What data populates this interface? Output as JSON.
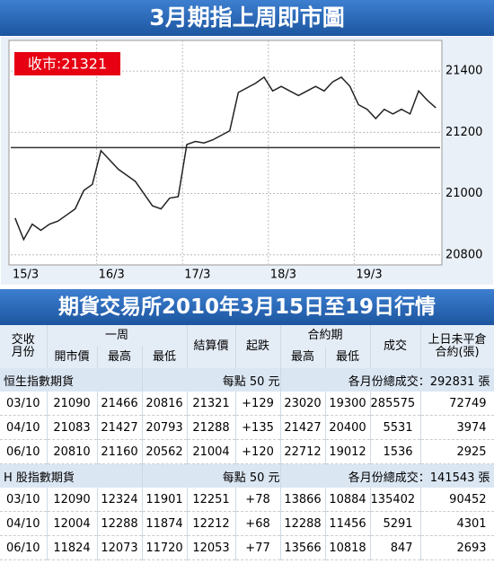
{
  "chart_data": {
    "type": "line",
    "title": "3月期指上周即市圖",
    "annotation": "收市:21321",
    "categories": [
      "15/3",
      null,
      null,
      null,
      null,
      null,
      null,
      null,
      null,
      null,
      "16/3",
      null,
      null,
      null,
      null,
      null,
      null,
      null,
      null,
      null,
      "17/3",
      null,
      null,
      null,
      null,
      null,
      null,
      null,
      null,
      null,
      "18/3",
      null,
      null,
      null,
      null,
      null,
      null,
      null,
      null,
      null,
      "19/3",
      null,
      null,
      null,
      null,
      null,
      null,
      null,
      null,
      null
    ],
    "values": [
      20920,
      20850,
      20900,
      20880,
      20900,
      20910,
      20930,
      20950,
      21010,
      21030,
      21140,
      21110,
      21080,
      21060,
      21040,
      21000,
      20960,
      20950,
      20985,
      20990,
      21160,
      21170,
      21165,
      21175,
      21190,
      21205,
      21330,
      21345,
      21360,
      21380,
      21335,
      21350,
      21335,
      21320,
      21335,
      21350,
      21335,
      21365,
      21380,
      21350,
      21290,
      21275,
      21245,
      21275,
      21260,
      21275,
      21260,
      21335,
      21305,
      21280
    ],
    "color": "#222222",
    "ref_line": 21150,
    "ylim": [
      20770,
      21500
    ],
    "yticks": [
      20800,
      21000,
      21200,
      21400
    ],
    "grid": true
  },
  "table": {
    "title": "期貨交易所2010年3月15日至19日行情",
    "header_row1": [
      "交收\n月份",
      "一周",
      "結算價",
      "起跌",
      "合約期",
      "成交",
      "上日未平倉\n合約(張)"
    ],
    "header_row2": [
      "開市價",
      "最高",
      "最低",
      "最高",
      "最低"
    ],
    "sections": [
      {
        "name": "恒生指數期貨",
        "unit": "每點 50 元",
        "total": "各月份總成交：292831 張",
        "rows": [
          [
            "03/10",
            "21090",
            "21466",
            "20816",
            "21321",
            "+129",
            "23020",
            "19300",
            "285575",
            "72749"
          ],
          [
            "04/10",
            "21083",
            "21427",
            "20793",
            "21288",
            "+135",
            "21427",
            "20400",
            "5531",
            "3974"
          ],
          [
            "06/10",
            "20810",
            "21160",
            "20562",
            "21004",
            "+120",
            "22712",
            "19012",
            "1536",
            "2925"
          ]
        ]
      },
      {
        "name": "H 股指數期貨",
        "unit": "每點 50 元",
        "total": "各月份總成交：141543 張",
        "rows": [
          [
            "03/10",
            "12090",
            "12324",
            "11901",
            "12251",
            "+78",
            "13866",
            "10884",
            "135402",
            "90452"
          ],
          [
            "04/10",
            "12004",
            "12288",
            "11874",
            "12212",
            "+68",
            "12288",
            "11456",
            "5291",
            "4301"
          ],
          [
            "06/10",
            "11824",
            "12073",
            "11720",
            "12053",
            "+77",
            "13566",
            "10818",
            "847",
            "2693"
          ]
        ]
      }
    ]
  }
}
